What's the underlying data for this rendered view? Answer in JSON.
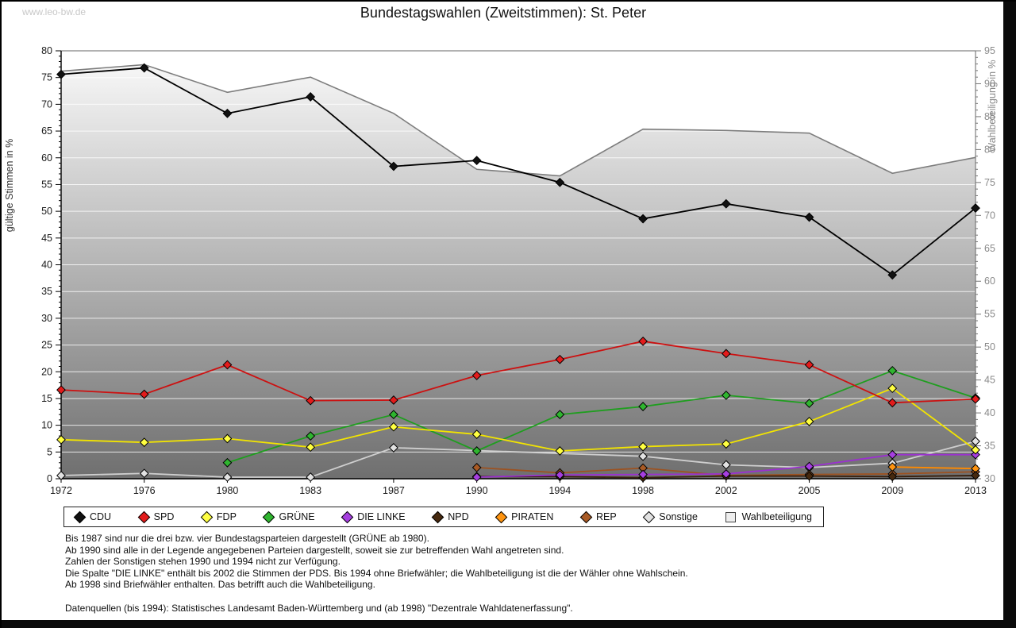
{
  "watermark": "www.leo-bw.de",
  "title": "Bundestagswahlen (Zweitstimmen): St. Peter",
  "chart_data": {
    "type": "line",
    "title": "Bundestagswahlen (Zweitstimmen): St. Peter",
    "x": [
      1972,
      1976,
      1980,
      1983,
      1987,
      1990,
      1994,
      1998,
      2002,
      2005,
      2009,
      2013
    ],
    "left_axis": {
      "label": "gültige Stimmen in %",
      "min": 0,
      "max": 80,
      "major_step": 5,
      "minor_step": 1
    },
    "right_axis": {
      "label": "Wahlbeteiligung in %",
      "min": 30,
      "max": 95,
      "major_step": 5,
      "minor_step": 1
    },
    "grid": "horizontal white lines every 5 units over shaded area",
    "legend_position": "bottom",
    "series": [
      {
        "name": "CDU",
        "color": "#000000",
        "marker_fill": "#111111",
        "axis": "left",
        "kind": "line",
        "values": [
          75.6,
          76.8,
          68.3,
          71.4,
          58.4,
          59.5,
          55.4,
          48.6,
          51.4,
          48.9,
          38.1,
          50.6
        ]
      },
      {
        "name": "SPD",
        "color": "#cc1111",
        "marker_fill": "#e31b1b",
        "axis": "left",
        "kind": "line",
        "values": [
          16.6,
          15.8,
          21.3,
          14.6,
          14.7,
          19.3,
          22.3,
          25.7,
          23.4,
          21.3,
          14.2,
          14.9
        ]
      },
      {
        "name": "FDP",
        "color": "#f2e400",
        "marker_fill": "#ffff42",
        "axis": "left",
        "kind": "line",
        "values": [
          7.3,
          6.8,
          7.5,
          5.9,
          9.7,
          8.3,
          5.2,
          6.0,
          6.5,
          10.7,
          16.9,
          5.4
        ]
      },
      {
        "name": "GRÜNE",
        "color": "#1f9e1f",
        "marker_fill": "#2fb52f",
        "axis": "left",
        "kind": "line",
        "values": [
          null,
          null,
          3.0,
          8.0,
          12.0,
          5.2,
          12.0,
          13.5,
          15.6,
          14.1,
          20.2,
          15.1
        ]
      },
      {
        "name": "DIE LINKE",
        "color": "#9b30d0",
        "marker_fill": "#a63fe0",
        "axis": "left",
        "kind": "line",
        "values": [
          null,
          null,
          null,
          null,
          null,
          0.3,
          0.7,
          0.8,
          0.9,
          2.3,
          4.5,
          4.5
        ]
      },
      {
        "name": "NPD",
        "color": "#38200e",
        "marker_fill": "#46290f",
        "axis": "left",
        "kind": "line",
        "values": [
          null,
          null,
          null,
          null,
          null,
          0.4,
          0.4,
          0.2,
          0.5,
          0.5,
          0.4,
          0.6
        ]
      },
      {
        "name": "PIRATEN",
        "color": "#ff8a00",
        "marker_fill": "#ff9410",
        "axis": "left",
        "kind": "line",
        "values": [
          null,
          null,
          null,
          null,
          null,
          null,
          null,
          null,
          null,
          null,
          2.2,
          1.9
        ]
      },
      {
        "name": "REP",
        "color": "#9c5221",
        "marker_fill": "#a85a25",
        "axis": "left",
        "kind": "line",
        "values": [
          null,
          null,
          null,
          null,
          null,
          2.1,
          1.1,
          2.0,
          0.6,
          0.8,
          0.9,
          1.3
        ]
      },
      {
        "name": "Sonstige",
        "color": "#cfcfcf",
        "marker_fill": "#e2e2e2",
        "axis": "left",
        "kind": "line",
        "values": [
          0.6,
          1.0,
          0.3,
          0.3,
          5.8,
          null,
          null,
          4.2,
          2.6,
          2.1,
          2.9,
          7.0
        ]
      },
      {
        "name": "Wahlbeteiligung",
        "color": "#7d7d7d",
        "marker_fill": "#eeeeee",
        "axis": "right",
        "kind": "area",
        "values": [
          91.9,
          92.9,
          88.7,
          91.0,
          85.5,
          77.0,
          76.0,
          83.1,
          82.9,
          82.5,
          76.4,
          78.8
        ]
      }
    ],
    "notes": "Sonstige values missing for 1990 and 1994 (line interpolated without markers)"
  },
  "footnotes": [
    "Bis 1987 sind nur die drei bzw. vier Bundestagsparteien dargestellt (GRÜNE ab 1980).",
    "Ab 1990 sind alle in der Legende angegebenen Parteien dargestellt, soweit sie zur betreffenden Wahl angetreten sind.",
    "Zahlen der Sonstigen stehen 1990 und 1994 nicht zur Verfügung.",
    "Die Spalte \"DIE LINKE\" enthält bis 2002 die Stimmen der PDS. Bis 1994 ohne Briefwähler; die Wahlbeteiligung ist die der Wähler ohne Wahlschein.",
    "Ab 1998 sind Briefwähler enthalten. Das betrifft auch die Wahlbeteiligung.",
    "",
    "Datenquellen (bis 1994): Statistisches Landesamt Baden-Württemberg und (ab 1998) \"Dezentrale Wahldatenerfassung\"."
  ]
}
